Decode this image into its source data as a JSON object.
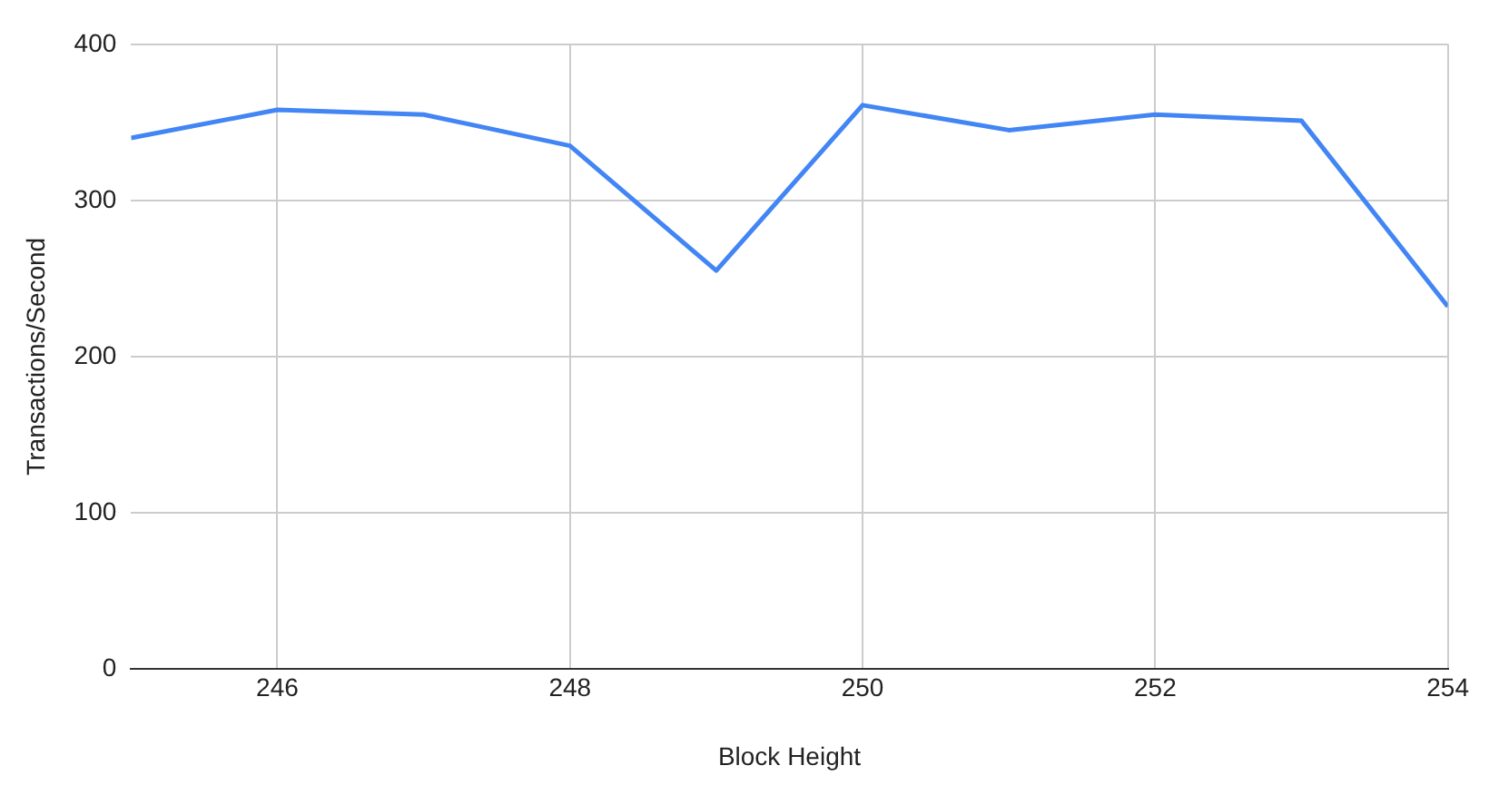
{
  "chart_data": {
    "type": "line",
    "xlabel": "Block Height",
    "ylabel": "Transactions/Second",
    "x": [
      245,
      246,
      247,
      248,
      249,
      250,
      251,
      252,
      253,
      254
    ],
    "series": [
      {
        "color": "#4285f4",
        "values": [
          340,
          358,
          355,
          335,
          255,
          361,
          345,
          355,
          351,
          232
        ]
      }
    ],
    "xlim": [
      245,
      254
    ],
    "xticks": [
      246,
      248,
      250,
      252,
      254
    ],
    "ylim": [
      0,
      400
    ],
    "yticks": [
      0,
      100,
      200,
      300,
      400
    ],
    "grid": true,
    "legend": false,
    "marker": "none",
    "line_style": "solid"
  }
}
